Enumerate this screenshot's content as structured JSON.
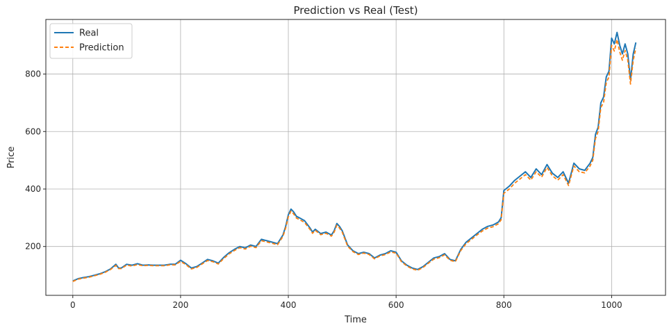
{
  "chart_data": {
    "type": "line",
    "title": "Prediction vs Real (Test)",
    "xlabel": "Time",
    "ylabel": "Price",
    "xlim": [
      -50,
      1100
    ],
    "ylim": [
      30,
      990
    ],
    "xticks": [
      0,
      200,
      400,
      600,
      800,
      1000
    ],
    "yticks": [
      200,
      400,
      600,
      800
    ],
    "grid": true,
    "legend_position": "top-left",
    "series": [
      {
        "name": "Real",
        "color": "#1f77b4",
        "style": "solid",
        "x": [
          0,
          10,
          20,
          30,
          40,
          50,
          60,
          70,
          80,
          85,
          90,
          100,
          110,
          120,
          130,
          140,
          150,
          160,
          170,
          180,
          190,
          200,
          210,
          220,
          230,
          240,
          250,
          260,
          270,
          280,
          290,
          300,
          310,
          320,
          330,
          340,
          350,
          360,
          370,
          380,
          390,
          395,
          400,
          405,
          410,
          415,
          420,
          430,
          440,
          445,
          450,
          460,
          470,
          480,
          485,
          490,
          495,
          500,
          510,
          520,
          530,
          540,
          550,
          560,
          570,
          580,
          590,
          600,
          610,
          620,
          630,
          640,
          650,
          660,
          670,
          680,
          690,
          700,
          710,
          720,
          730,
          740,
          750,
          760,
          770,
          780,
          790,
          795,
          800,
          810,
          820,
          830,
          840,
          850,
          860,
          870,
          880,
          890,
          900,
          910,
          920,
          930,
          940,
          950,
          960,
          965,
          970,
          975,
          980,
          985,
          990,
          995,
          1000,
          1005,
          1010,
          1015,
          1020,
          1025,
          1030,
          1035,
          1040,
          1045
        ],
        "y": [
          80,
          88,
          92,
          95,
          100,
          105,
          112,
          122,
          138,
          125,
          125,
          138,
          135,
          140,
          135,
          136,
          135,
          135,
          135,
          138,
          138,
          152,
          140,
          125,
          130,
          142,
          155,
          150,
          142,
          162,
          178,
          190,
          200,
          195,
          205,
          200,
          225,
          220,
          215,
          210,
          240,
          270,
          310,
          330,
          320,
          305,
          300,
          290,
          265,
          250,
          260,
          245,
          250,
          240,
          255,
          280,
          270,
          255,
          205,
          185,
          175,
          180,
          175,
          160,
          170,
          175,
          185,
          180,
          150,
          135,
          125,
          120,
          130,
          145,
          160,
          165,
          175,
          155,
          150,
          190,
          215,
          230,
          245,
          260,
          270,
          275,
          285,
          300,
          395,
          410,
          430,
          445,
          460,
          440,
          470,
          450,
          485,
          455,
          440,
          460,
          420,
          490,
          470,
          465,
          490,
          510,
          590,
          615,
          700,
          720,
          790,
          810,
          925,
          905,
          945,
          900,
          870,
          905,
          870,
          780,
          870,
          910
        ]
      },
      {
        "name": "Prediction",
        "color": "#ff7f0e",
        "style": "dashed",
        "x": [
          0,
          10,
          20,
          30,
          40,
          50,
          60,
          70,
          80,
          85,
          90,
          100,
          110,
          120,
          130,
          140,
          150,
          160,
          170,
          180,
          190,
          200,
          210,
          220,
          230,
          240,
          250,
          260,
          270,
          280,
          290,
          300,
          310,
          320,
          330,
          340,
          350,
          360,
          370,
          380,
          390,
          395,
          400,
          405,
          410,
          415,
          420,
          430,
          440,
          445,
          450,
          460,
          470,
          480,
          485,
          490,
          495,
          500,
          510,
          520,
          530,
          540,
          550,
          560,
          570,
          580,
          590,
          600,
          610,
          620,
          630,
          640,
          650,
          660,
          670,
          680,
          690,
          700,
          710,
          720,
          730,
          740,
          750,
          760,
          770,
          780,
          790,
          795,
          800,
          810,
          820,
          830,
          840,
          850,
          860,
          870,
          880,
          890,
          900,
          910,
          920,
          930,
          940,
          950,
          960,
          965,
          970,
          975,
          980,
          985,
          990,
          995,
          1000,
          1005,
          1010,
          1015,
          1020,
          1025,
          1030,
          1035,
          1040,
          1045
        ],
        "y": [
          78,
          86,
          90,
          93,
          98,
          103,
          110,
          120,
          134,
          123,
          123,
          135,
          132,
          137,
          133,
          134,
          133,
          133,
          133,
          136,
          136,
          148,
          137,
          122,
          127,
          139,
          151,
          147,
          139,
          158,
          174,
          186,
          196,
          191,
          201,
          196,
          220,
          216,
          211,
          206,
          235,
          264,
          303,
          323,
          313,
          299,
          294,
          284,
          260,
          246,
          256,
          241,
          246,
          236,
          250,
          274,
          264,
          250,
          201,
          182,
          172,
          177,
          172,
          157,
          167,
          172,
          181,
          177,
          147,
          132,
          122,
          117,
          127,
          142,
          156,
          161,
          171,
          152,
          147,
          186,
          210,
          225,
          240,
          254,
          264,
          269,
          279,
          293,
          385,
          400,
          420,
          435,
          450,
          431,
          460,
          441,
          475,
          446,
          431,
          450,
          412,
          480,
          460,
          456,
          480,
          500,
          576,
          600,
          684,
          700,
          770,
          790,
          900,
          880,
          920,
          877,
          848,
          882,
          848,
          765,
          848,
          890
        ]
      }
    ]
  }
}
